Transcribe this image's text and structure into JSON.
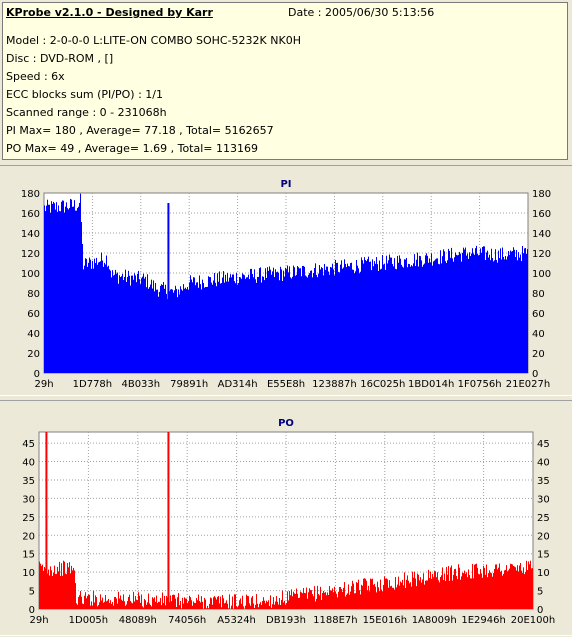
{
  "header": {
    "title": "KProbe v2.1.0 - Designed by Karr",
    "date": "Date : 2005/06/30 5:13:56",
    "model": "Model : 2-0-0-0 L:LITE-ON COMBO SOHC-5232K NK0H",
    "disc": "Disc : DVD-ROM ,  []",
    "speed": "Speed : 6x",
    "ecc": "ECC blocks sum (PI/PO) : 1/1",
    "range": "Scanned range : 0 - 231068h",
    "pi_stats": "PI Max= 180 , Average= 77.18 , Total= 5162657",
    "po_stats": "PO Max= 49 , Average= 1.69 , Total= 113169"
  },
  "chart_data": [
    {
      "type": "bar",
      "title": "PI",
      "color": "#0000ff",
      "ylim": [
        0,
        180
      ],
      "yticks": [
        0,
        20,
        40,
        60,
        80,
        100,
        120,
        140,
        160,
        180
      ],
      "xticks": [
        "29h",
        "1D778h",
        "4B033h",
        "79891h",
        "AD314h",
        "E55E8h",
        "123887h",
        "16C025h",
        "1BD014h",
        "1F0756h",
        "21E027h"
      ],
      "grid": true,
      "profile": [
        [
          0,
          165
        ],
        [
          0.07,
          168
        ],
        [
          0.075,
          172
        ],
        [
          0.08,
          108
        ],
        [
          0.13,
          115
        ],
        [
          0.14,
          98
        ],
        [
          0.21,
          93
        ],
        [
          0.23,
          85
        ],
        [
          0.27,
          80
        ],
        [
          0.3,
          90
        ],
        [
          0.4,
          96
        ],
        [
          0.5,
          100
        ],
        [
          0.6,
          105
        ],
        [
          0.7,
          110
        ],
        [
          0.8,
          115
        ],
        [
          0.88,
          120
        ],
        [
          0.95,
          118
        ],
        [
          1,
          120
        ]
      ],
      "spikes": [
        {
          "x": 0.255,
          "value": 170
        }
      ]
    },
    {
      "type": "bar",
      "title": "PO",
      "color": "#ff0000",
      "ylim": [
        0,
        48
      ],
      "yticks": [
        0,
        5,
        10,
        15,
        20,
        25,
        30,
        35,
        40,
        45
      ],
      "xticks": [
        "29h",
        "1D005h",
        "48089h",
        "74056h",
        "A5324h",
        "DB193h",
        "1188E7h",
        "15E016h",
        "1A8009h",
        "1E2946h",
        "20E100h"
      ],
      "grid": true,
      "profile": [
        [
          0,
          11
        ],
        [
          0.07,
          11
        ],
        [
          0.075,
          3
        ],
        [
          0.2,
          2.5
        ],
        [
          0.35,
          2
        ],
        [
          0.45,
          2
        ],
        [
          0.55,
          4
        ],
        [
          0.65,
          6
        ],
        [
          0.75,
          8
        ],
        [
          0.85,
          10
        ],
        [
          0.95,
          11
        ],
        [
          1,
          11
        ]
      ],
      "spikes": [
        {
          "x": 0.013,
          "value": 48
        },
        {
          "x": 0.26,
          "value": 48
        }
      ]
    }
  ]
}
